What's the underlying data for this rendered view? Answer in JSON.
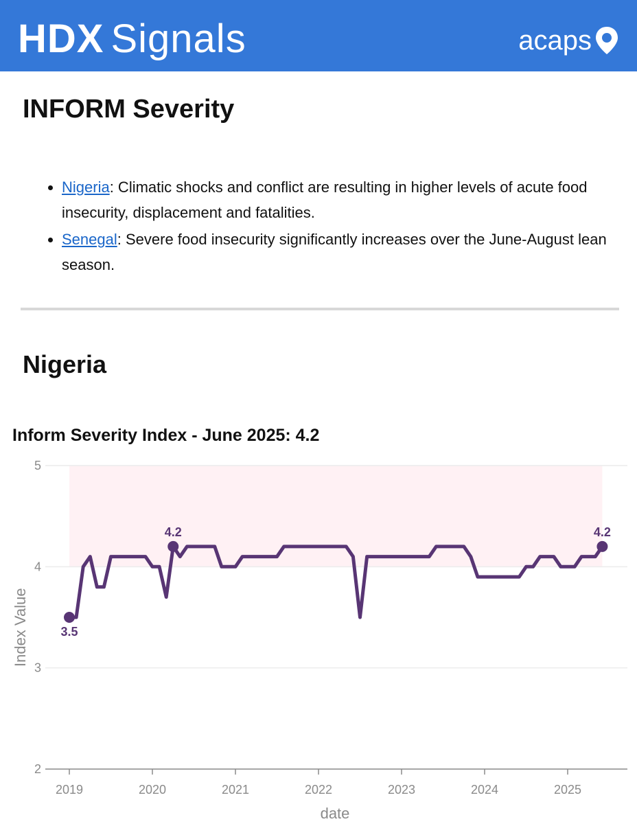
{
  "header": {
    "brand_bold": "HDX",
    "brand_light": "Signals",
    "logo_text": "acaps",
    "logo_icon": "map-pin-icon",
    "bg_color": "#3478d8"
  },
  "page_title": "INFORM Severity",
  "bullets": [
    {
      "country": "Nigeria",
      "text": ": Climatic shocks and conflict are resulting in higher levels of acute food insecurity, displacement and fatalities."
    },
    {
      "country": "Senegal",
      "text": ": Severe food insecurity significantly increases over the June-August lean season."
    }
  ],
  "country_heading": "Nigeria",
  "chart_data": {
    "type": "line",
    "title": "Inform Severity Index - June 2025: 4.2",
    "xlabel": "date",
    "ylabel": "Index Value",
    "ylim": [
      2,
      5
    ],
    "yticks": [
      2,
      3,
      4,
      5
    ],
    "xticks": [
      "2019",
      "2020",
      "2021",
      "2022",
      "2023",
      "2024",
      "2025"
    ],
    "grid": true,
    "line_color": "#583574",
    "band": {
      "from": 4,
      "to": 5,
      "color": "#fff1f4"
    },
    "series": [
      {
        "x": [
          "2019-01",
          "2019-02",
          "2019-03",
          "2019-04",
          "2019-05",
          "2019-06",
          "2019-07",
          "2019-08",
          "2019-09",
          "2019-10",
          "2019-11",
          "2019-12",
          "2020-01",
          "2020-02",
          "2020-03",
          "2020-04",
          "2020-05",
          "2020-06",
          "2020-07",
          "2020-08",
          "2020-09",
          "2020-10",
          "2020-11",
          "2020-12",
          "2021-01",
          "2021-02",
          "2021-03",
          "2021-04",
          "2021-05",
          "2021-06",
          "2021-07",
          "2021-08",
          "2021-09",
          "2021-10",
          "2021-11",
          "2021-12",
          "2022-01",
          "2022-02",
          "2022-03",
          "2022-04",
          "2022-05",
          "2022-06",
          "2022-07",
          "2022-08",
          "2022-09",
          "2022-10",
          "2022-11",
          "2022-12",
          "2023-01",
          "2023-02",
          "2023-03",
          "2023-04",
          "2023-05",
          "2023-06",
          "2023-07",
          "2023-08",
          "2023-09",
          "2023-10",
          "2023-11",
          "2023-12",
          "2024-01",
          "2024-02",
          "2024-03",
          "2024-04",
          "2024-05",
          "2024-06",
          "2024-07",
          "2024-08",
          "2024-09",
          "2024-10",
          "2024-11",
          "2024-12",
          "2025-01",
          "2025-02",
          "2025-03",
          "2025-04",
          "2025-05",
          "2025-06"
        ],
        "values": [
          3.5,
          3.5,
          4.0,
          4.1,
          3.8,
          3.8,
          4.1,
          4.1,
          4.1,
          4.1,
          4.1,
          4.1,
          4.0,
          4.0,
          3.7,
          4.2,
          4.1,
          4.2,
          4.2,
          4.2,
          4.2,
          4.2,
          4.0,
          4.0,
          4.0,
          4.1,
          4.1,
          4.1,
          4.1,
          4.1,
          4.1,
          4.2,
          4.2,
          4.2,
          4.2,
          4.2,
          4.2,
          4.2,
          4.2,
          4.2,
          4.2,
          4.1,
          3.5,
          4.1,
          4.1,
          4.1,
          4.1,
          4.1,
          4.1,
          4.1,
          4.1,
          4.1,
          4.1,
          4.2,
          4.2,
          4.2,
          4.2,
          4.2,
          4.1,
          3.9,
          3.9,
          3.9,
          3.9,
          3.9,
          3.9,
          3.9,
          4.0,
          4.0,
          4.1,
          4.1,
          4.1,
          4.0,
          4.0,
          4.0,
          4.1,
          4.1,
          4.1,
          4.2
        ]
      }
    ],
    "annotations": [
      {
        "x": "2019-01",
        "y": 3.5,
        "label": "3.5",
        "position": "below"
      },
      {
        "x": "2020-04",
        "y": 4.2,
        "label": "4.2",
        "position": "above"
      },
      {
        "x": "2025-06",
        "y": 4.2,
        "label": "4.2",
        "position": "above"
      }
    ]
  }
}
